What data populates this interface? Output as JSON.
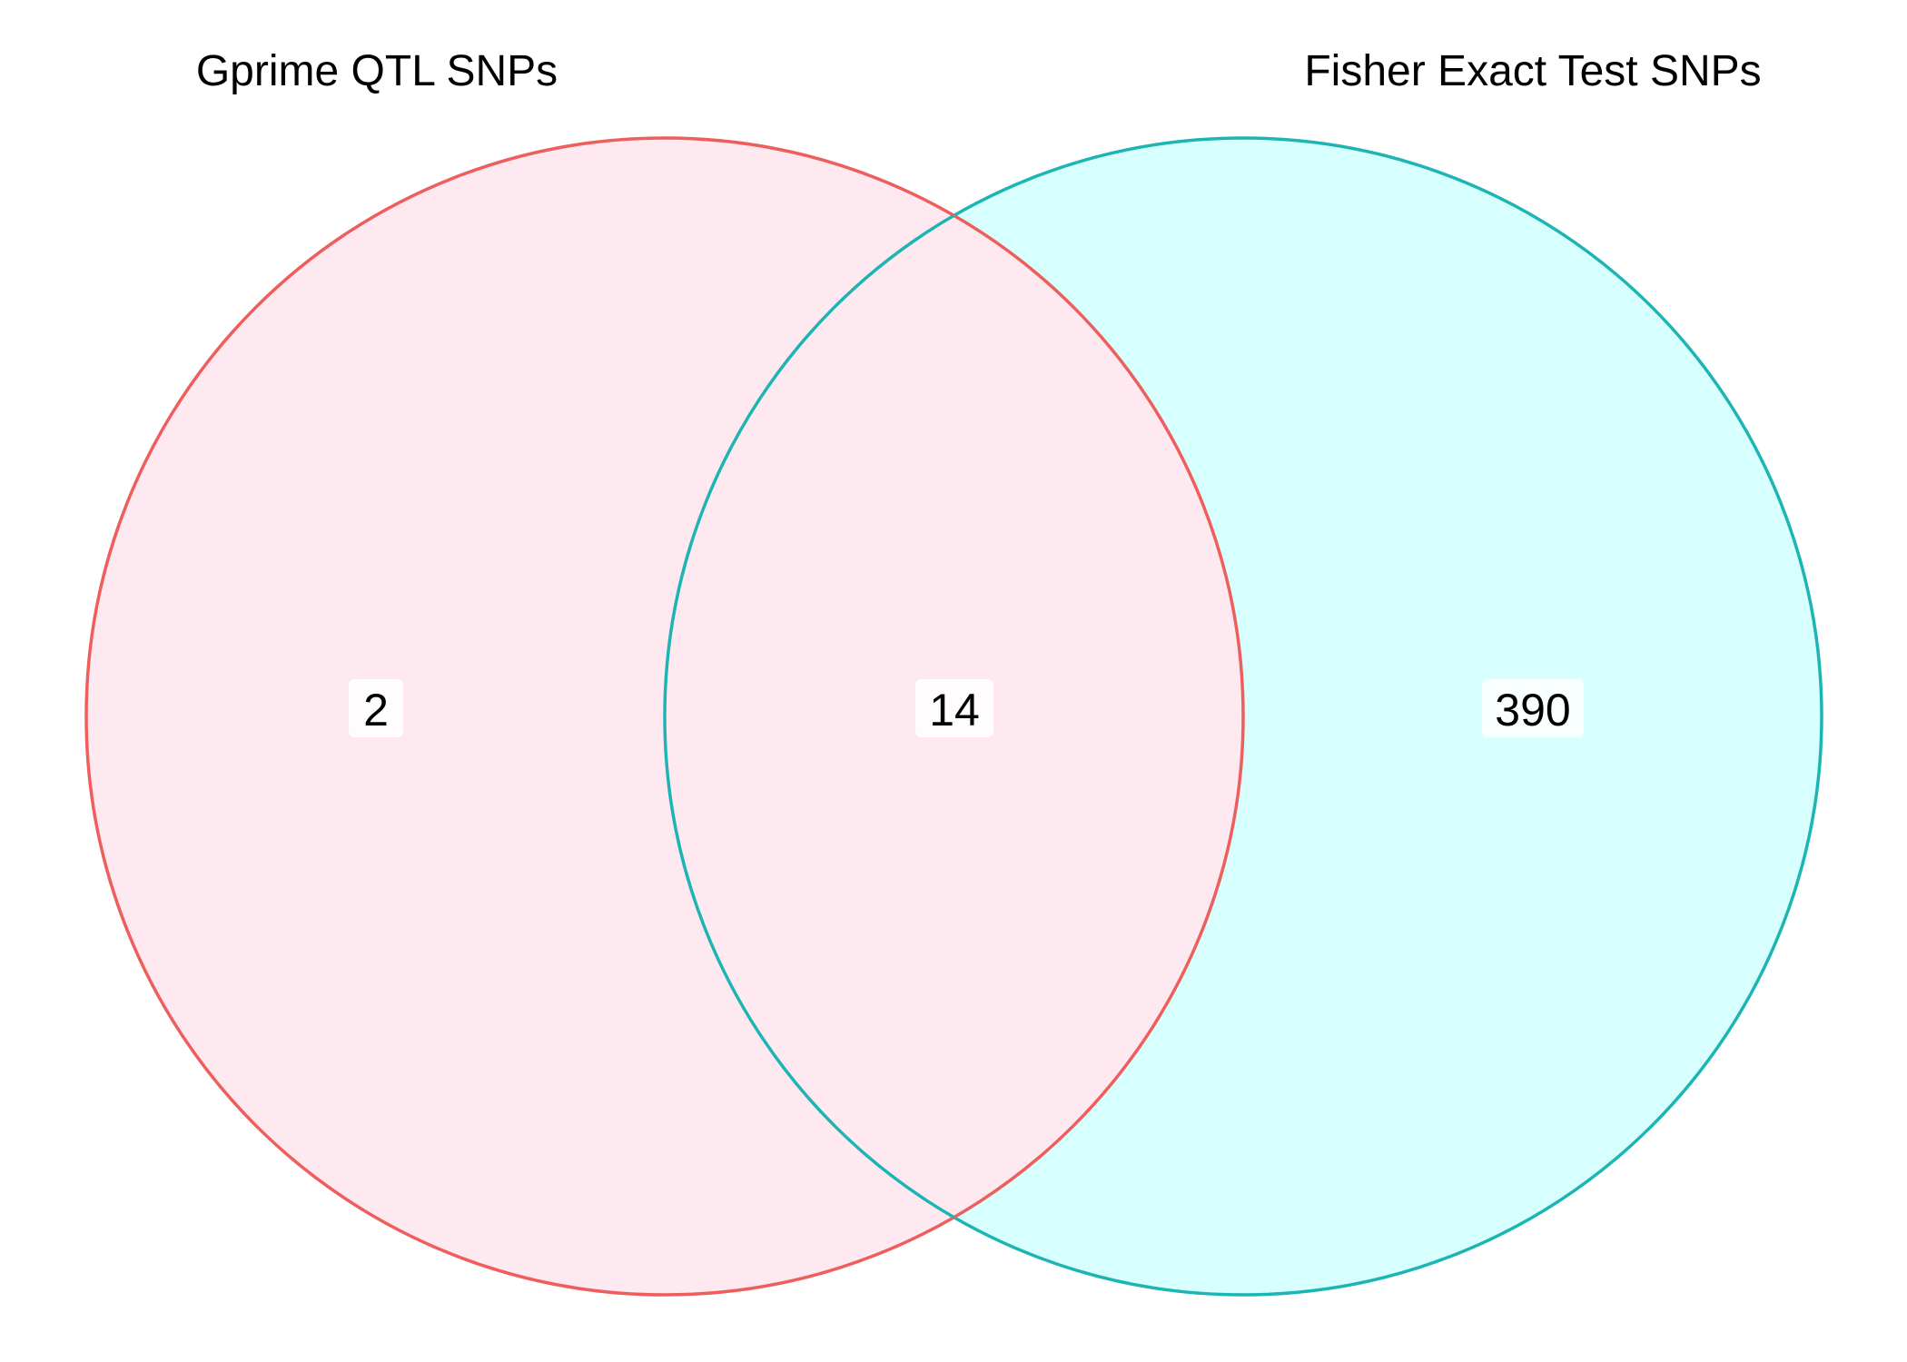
{
  "sets": [
    {
      "name": "Gprime QTL SNPs",
      "fill_color": "#F8766D",
      "stroke_color": "#F0625C",
      "only_count": "2"
    },
    {
      "name": "Fisher Exact Test SNPs",
      "fill_color": "#00E5E5",
      "stroke_color": "#1AB3B3",
      "only_count": "390"
    }
  ],
  "intersection": {
    "count": "14"
  },
  "colors": {
    "set_a_fill": "#FDE9EF",
    "set_b_fill": "#D6FFFE",
    "overlap_fill": "#FDE9EF",
    "set_a_stroke": "#EE5E5C",
    "set_b_stroke": "#1DB5B4"
  }
}
